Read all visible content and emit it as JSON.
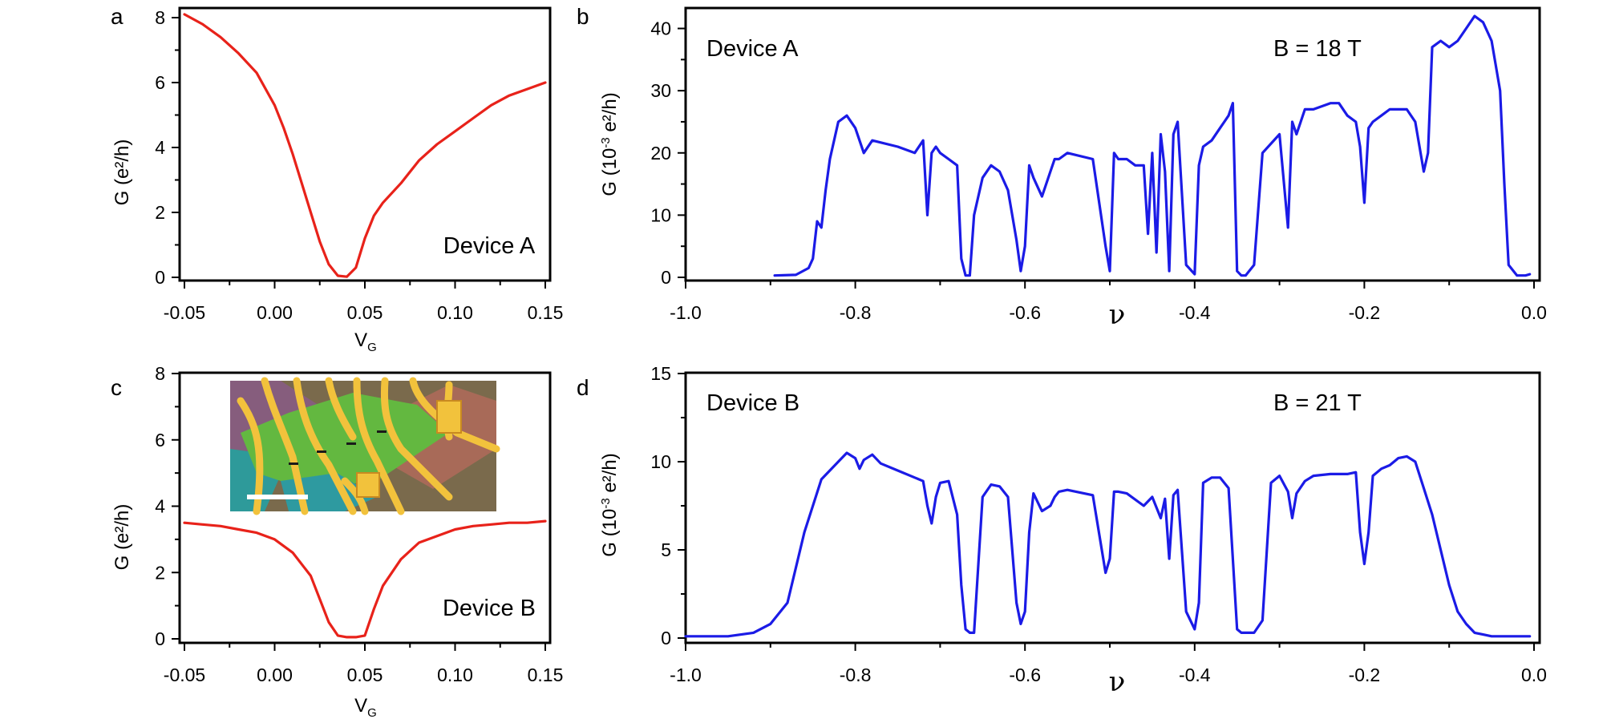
{
  "figure": {
    "panel_letters": {
      "a": "a",
      "b": "b",
      "c": "c",
      "d": "d"
    }
  },
  "colors": {
    "red_trace": "#e8221a",
    "blue_trace": "#1b1be6",
    "axis": "#000000"
  },
  "chart_data": [
    {
      "id": "a",
      "type": "line",
      "title": "",
      "annotation": "Device A",
      "xlabel": {
        "main": "V",
        "sub": "G"
      },
      "ylabel": {
        "main": "G (e²/h)"
      },
      "xlim": [
        -0.05,
        0.15
      ],
      "ylim": [
        0,
        8
      ],
      "xticks": [
        -0.05,
        0.0,
        0.05,
        0.1,
        0.15
      ],
      "xtick_labels": [
        "-0.05",
        "0.00",
        "0.05",
        "0.10",
        "0.15"
      ],
      "yticks": [
        0,
        2,
        4,
        6,
        8
      ],
      "ytick_labels": [
        "0",
        "2",
        "4",
        "6",
        "8"
      ],
      "series": [
        {
          "name": "Device A",
          "color": "#e8221a",
          "x": [
            -0.05,
            -0.04,
            -0.03,
            -0.02,
            -0.01,
            0.0,
            0.005,
            0.01,
            0.015,
            0.02,
            0.025,
            0.03,
            0.035,
            0.04,
            0.045,
            0.05,
            0.055,
            0.06,
            0.07,
            0.08,
            0.09,
            0.1,
            0.11,
            0.12,
            0.13,
            0.14,
            0.15
          ],
          "y": [
            8.1,
            7.8,
            7.4,
            6.9,
            6.3,
            5.3,
            4.6,
            3.8,
            2.9,
            2.0,
            1.1,
            0.4,
            0.05,
            0.02,
            0.3,
            1.2,
            1.9,
            2.3,
            2.9,
            3.6,
            4.1,
            4.5,
            4.9,
            5.3,
            5.6,
            5.8,
            6.0
          ]
        }
      ]
    },
    {
      "id": "b",
      "type": "line",
      "title": "",
      "annotation": "Device A",
      "annotation2": "B = 18 T",
      "xlabel": {
        "main": "ν"
      },
      "ylabel": {
        "main": "G (10",
        "sup": "-3",
        "rest": " e²/h)"
      },
      "xlim": [
        -1.0,
        0.0
      ],
      "ylim": [
        0,
        42
      ],
      "xticks": [
        -1.0,
        -0.8,
        -0.6,
        -0.4,
        -0.2,
        0.0
      ],
      "xtick_labels": [
        "-1.0",
        "-0.8",
        "-0.6",
        "-0.4",
        "-0.2",
        "0.0"
      ],
      "yticks": [
        0,
        10,
        20,
        30,
        40
      ],
      "ytick_labels": [
        "0",
        "10",
        "20",
        "30",
        "40"
      ],
      "series": [
        {
          "name": "B = 18 T",
          "color": "#1b1be6",
          "x": [
            -0.895,
            -0.87,
            -0.855,
            -0.85,
            -0.845,
            -0.84,
            -0.835,
            -0.83,
            -0.82,
            -0.81,
            -0.8,
            -0.79,
            -0.78,
            -0.75,
            -0.73,
            -0.72,
            -0.715,
            -0.71,
            -0.705,
            -0.7,
            -0.69,
            -0.68,
            -0.675,
            -0.67,
            -0.665,
            -0.66,
            -0.65,
            -0.64,
            -0.63,
            -0.62,
            -0.61,
            -0.605,
            -0.6,
            -0.595,
            -0.59,
            -0.58,
            -0.57,
            -0.565,
            -0.56,
            -0.55,
            -0.52,
            -0.505,
            -0.5,
            -0.495,
            -0.49,
            -0.48,
            -0.47,
            -0.46,
            -0.455,
            -0.45,
            -0.445,
            -0.44,
            -0.435,
            -0.43,
            -0.425,
            -0.42,
            -0.41,
            -0.4,
            -0.395,
            -0.39,
            -0.38,
            -0.37,
            -0.36,
            -0.355,
            -0.35,
            -0.345,
            -0.34,
            -0.33,
            -0.32,
            -0.3,
            -0.29,
            -0.285,
            -0.28,
            -0.27,
            -0.26,
            -0.24,
            -0.23,
            -0.22,
            -0.21,
            -0.205,
            -0.2,
            -0.195,
            -0.19,
            -0.18,
            -0.17,
            -0.16,
            -0.15,
            -0.14,
            -0.13,
            -0.125,
            -0.12,
            -0.11,
            -0.1,
            -0.09,
            -0.08,
            -0.07,
            -0.06,
            -0.05,
            -0.04,
            -0.035,
            -0.03,
            -0.02,
            -0.01,
            -0.005
          ],
          "y": [
            0.3,
            0.4,
            1.5,
            3,
            9,
            8,
            14,
            19,
            25,
            26,
            24,
            20,
            22,
            21,
            20,
            22,
            10,
            20,
            21,
            20,
            19,
            18,
            3,
            0.3,
            0.3,
            10,
            16,
            18,
            17,
            14,
            6,
            1,
            5,
            18,
            16,
            13,
            17,
            19,
            19,
            20,
            19,
            5,
            1,
            20,
            19,
            19,
            18,
            18,
            7,
            20,
            4,
            23,
            17,
            1,
            23,
            25,
            2,
            0.5,
            18,
            21,
            22,
            24,
            26,
            28,
            1,
            0.3,
            0.3,
            2,
            20,
            23,
            8,
            25,
            23,
            27,
            27,
            28,
            28,
            26,
            25,
            21,
            12,
            24,
            25,
            26,
            27,
            27,
            27,
            25,
            17,
            20,
            37,
            38,
            37,
            38,
            40,
            42,
            41,
            38,
            30,
            15,
            2,
            0.3,
            0.3,
            0.5
          ]
        }
      ]
    },
    {
      "id": "c",
      "type": "line",
      "title": "",
      "annotation": "Device B",
      "xlabel": {
        "main": "V",
        "sub": "G"
      },
      "ylabel": {
        "main": "G (e²/h)"
      },
      "xlim": [
        -0.05,
        0.15
      ],
      "ylim": [
        0,
        8
      ],
      "xticks": [
        -0.05,
        0.0,
        0.05,
        0.1,
        0.15
      ],
      "xtick_labels": [
        "-0.05",
        "0.00",
        "0.05",
        "0.10",
        "0.15"
      ],
      "yticks": [
        0,
        2,
        4,
        6,
        8
      ],
      "ytick_labels": [
        "0",
        "2",
        "4",
        "6",
        "8"
      ],
      "series": [
        {
          "name": "Device B",
          "color": "#e8221a",
          "x": [
            -0.05,
            -0.04,
            -0.03,
            -0.02,
            -0.01,
            0.0,
            0.01,
            0.02,
            0.025,
            0.03,
            0.035,
            0.04,
            0.045,
            0.05,
            0.055,
            0.06,
            0.07,
            0.08,
            0.09,
            0.1,
            0.11,
            0.12,
            0.13,
            0.14,
            0.15
          ],
          "y": [
            3.5,
            3.45,
            3.4,
            3.3,
            3.2,
            3.0,
            2.6,
            1.9,
            1.2,
            0.5,
            0.1,
            0.05,
            0.05,
            0.1,
            0.9,
            1.6,
            2.4,
            2.9,
            3.1,
            3.3,
            3.4,
            3.45,
            3.5,
            3.5,
            3.55
          ]
        }
      ],
      "inset": {
        "content": "optical micrograph of device",
        "scale_bar": true
      }
    },
    {
      "id": "d",
      "type": "line",
      "title": "",
      "annotation": "Device B",
      "annotation2": "B = 21 T",
      "xlabel": {
        "main": "ν"
      },
      "ylabel": {
        "main": "G (10",
        "sup": "-3",
        "rest": " e²/h)"
      },
      "xlim": [
        -1.0,
        0.0
      ],
      "ylim": [
        0,
        15
      ],
      "xticks": [
        -1.0,
        -0.8,
        -0.6,
        -0.4,
        -0.2,
        0.0
      ],
      "xtick_labels": [
        "-1.0",
        "-0.8",
        "-0.6",
        "-0.4",
        "-0.2",
        "0.0"
      ],
      "yticks": [
        0,
        5,
        10,
        15
      ],
      "ytick_labels": [
        "0",
        "5",
        "10",
        "15"
      ],
      "series": [
        {
          "name": "B = 21 T",
          "color": "#1b1be6",
          "x": [
            -1.0,
            -0.95,
            -0.92,
            -0.9,
            -0.88,
            -0.86,
            -0.84,
            -0.82,
            -0.81,
            -0.8,
            -0.795,
            -0.79,
            -0.78,
            -0.77,
            -0.75,
            -0.73,
            -0.72,
            -0.715,
            -0.71,
            -0.705,
            -0.7,
            -0.69,
            -0.68,
            -0.675,
            -0.67,
            -0.665,
            -0.66,
            -0.65,
            -0.64,
            -0.63,
            -0.62,
            -0.61,
            -0.605,
            -0.6,
            -0.595,
            -0.59,
            -0.58,
            -0.57,
            -0.565,
            -0.56,
            -0.55,
            -0.52,
            -0.505,
            -0.5,
            -0.495,
            -0.49,
            -0.48,
            -0.46,
            -0.45,
            -0.44,
            -0.435,
            -0.43,
            -0.425,
            -0.42,
            -0.41,
            -0.4,
            -0.395,
            -0.39,
            -0.38,
            -0.37,
            -0.36,
            -0.35,
            -0.345,
            -0.34,
            -0.33,
            -0.32,
            -0.31,
            -0.3,
            -0.29,
            -0.285,
            -0.28,
            -0.27,
            -0.26,
            -0.24,
            -0.23,
            -0.22,
            -0.21,
            -0.205,
            -0.2,
            -0.195,
            -0.19,
            -0.18,
            -0.17,
            -0.16,
            -0.15,
            -0.14,
            -0.13,
            -0.12,
            -0.11,
            -0.1,
            -0.09,
            -0.08,
            -0.07,
            -0.06,
            -0.05,
            -0.04,
            -0.03,
            -0.02,
            -0.01,
            -0.005
          ],
          "y": [
            0.1,
            0.1,
            0.3,
            0.8,
            2,
            6,
            9,
            10,
            10.5,
            10.2,
            9.6,
            10.1,
            10.4,
            9.9,
            9.5,
            9.1,
            8.9,
            7.5,
            6.5,
            8.0,
            8.8,
            8.9,
            7,
            3,
            0.5,
            0.3,
            0.3,
            8,
            8.7,
            8.6,
            8,
            2,
            0.8,
            1.5,
            6,
            8.2,
            7.2,
            7.5,
            8.0,
            8.3,
            8.4,
            8.1,
            3.7,
            4.5,
            8.3,
            8.3,
            8.2,
            7.5,
            8.0,
            6.8,
            7.9,
            4.5,
            8.1,
            8.4,
            1.5,
            0.5,
            2,
            8.8,
            9.1,
            9.1,
            8.5,
            0.5,
            0.3,
            0.3,
            0.3,
            1,
            8.8,
            9.2,
            8.3,
            6.8,
            8.2,
            8.9,
            9.2,
            9.3,
            9.3,
            9.3,
            9.4,
            6,
            4.2,
            6,
            9.2,
            9.6,
            9.8,
            10.2,
            10.3,
            10.0,
            8.5,
            7,
            5,
            3,
            1.5,
            0.8,
            0.3,
            0.2,
            0.1,
            0.1,
            0.1,
            0.1,
            0.1,
            0.1
          ]
        }
      ]
    }
  ]
}
